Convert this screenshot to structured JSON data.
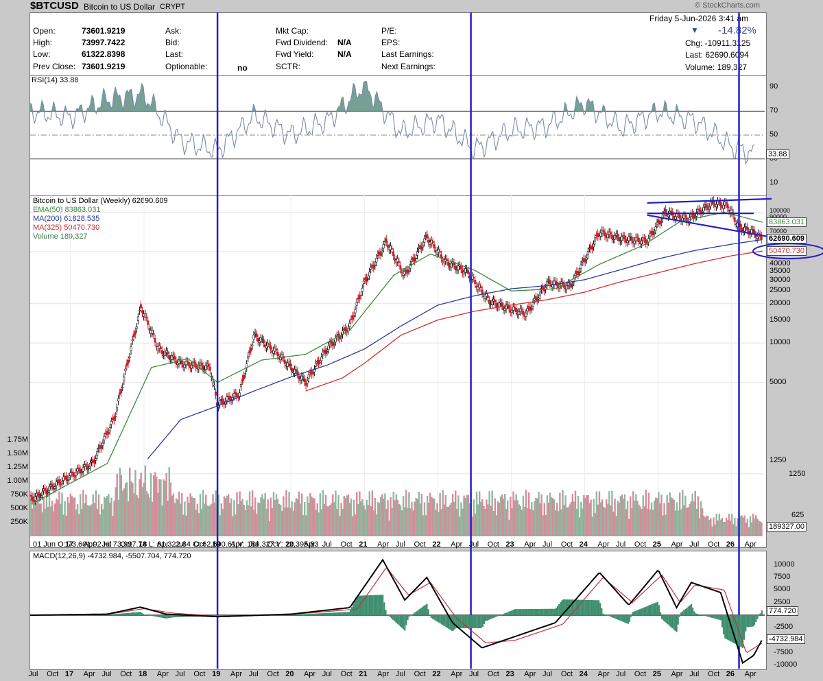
{
  "header": {
    "symbol": "$BTCUSD",
    "name": "Bitcoin to US Dollar",
    "exchange": "CRYPT",
    "brand": "© StockCharts.com",
    "datetime": "Friday   5-Jun-2026  3:41 am",
    "change_pct": "-14.82%",
    "chg": "Chg: -10911.3125",
    "last": "Last: 62690.6094",
    "volume": "Volume: 189,327"
  },
  "quote": {
    "open_label": "Open:",
    "open": "73601.9219",
    "high_label": "High:",
    "high": "73997.7422",
    "low_label": "Low:",
    "low": "61322.8398",
    "prev_label": "Prev Close:",
    "prev": "73601.9219",
    "ask": "Ask:",
    "bid": "Bid:",
    "last": "Last:",
    "optionable": "Optionable:",
    "optionable_val": "no",
    "mktcap": "Mkt Cap:",
    "fwd_div": "Fwd Dividend:",
    "fwd_div_val": "N/A",
    "fwd_yield": "Fwd Yield:",
    "fwd_yield_val": "N/A",
    "sctr": "SCTR:",
    "pe": "P/E:",
    "eps": "EPS:",
    "last_earn": "Last Earnings:",
    "next_earn": "Next Earnings:"
  },
  "colors": {
    "rsi_line": "#7b8aa8",
    "rsi_fill": "#5f8f83",
    "ema50": "#3a8a3a",
    "ma200": "#2a3a9a",
    "ma325": "#d0302f",
    "annot": "#2020d0",
    "macd": "#000000",
    "signal": "#c0303f",
    "hist": "#3f8f6f",
    "vol_up": "#8fb89f",
    "vol_down": "#d98a9a"
  },
  "chart_data": [
    {
      "type": "line",
      "title": "RSI(14) 33.88",
      "ylim": [
        0,
        100
      ],
      "yticks": [
        "90",
        "70",
        "50",
        "30",
        "10"
      ],
      "last_tag": "33.88",
      "x_years": [
        2016.5,
        2017,
        2017.5,
        2018,
        2018.5,
        2019,
        2019.5,
        2020,
        2020.5,
        2021,
        2021.5,
        2022,
        2022.5,
        2023,
        2023.5,
        2024,
        2024.5,
        2025,
        2025.5,
        2026,
        2026.3
      ],
      "values": [
        70,
        65,
        80,
        84,
        45,
        37,
        66,
        50,
        62,
        92,
        52,
        63,
        38,
        54,
        58,
        77,
        56,
        70,
        62,
        40,
        34
      ]
    },
    {
      "type": "line",
      "title": "Bitcoin to US Dollar (Weekly) 62690.609",
      "scale": "log",
      "legend": [
        "EMA(50) 83863.031",
        "MA(200) 61828.535",
        "MA(325) 50470.730",
        "Volume 189,327"
      ],
      "yticks": [
        "100000",
        "90000",
        "80000",
        "70000",
        "60000",
        "50000",
        "40000",
        "35000",
        "30000",
        "25000",
        "20000",
        "15000",
        "10000",
        "5000",
        "1250",
        "625"
      ],
      "vol_ticks": [
        "1.75M",
        "1.50M",
        "1.25M",
        "1.00M",
        "750K",
        "500K",
        "250K"
      ],
      "tags": [
        "83863.031",
        "62690.609",
        "50470.730",
        "189327.00"
      ],
      "xlabels": [
        "Jul",
        "Oct",
        "17",
        "Apr",
        "Jul",
        "Oct",
        "18",
        "Apr",
        "Jul",
        "Oct",
        "19",
        "Apr",
        "Jul",
        "Oct",
        "20",
        "Apr",
        "Jul",
        "Oct",
        "21",
        "Apr",
        "Jul",
        "Oct",
        "22",
        "Apr",
        "Jul",
        "Oct",
        "23",
        "Apr",
        "Jul",
        "Oct",
        "24",
        "Apr",
        "Jul",
        "Oct",
        "25",
        "Apr",
        "Jul",
        "Oct",
        "26",
        "Apr"
      ],
      "ohlc_strip": "01 Jun O: 73,601.92   H: 73,997.74   L: 61,322.84   C: 62,690.61   V: 189,327   Y: 12,395.83",
      "series": [
        {
          "name": "Bitcoin to US Dollar",
          "x": [
            2016.5,
            2016.9,
            2017.3,
            2017.6,
            2017.96,
            2018.2,
            2018.5,
            2018.9,
            2019.0,
            2019.3,
            2019.5,
            2019.8,
            2020.2,
            2020.5,
            2020.8,
            2021.0,
            2021.3,
            2021.55,
            2021.85,
            2022.1,
            2022.4,
            2022.7,
            2022.9,
            2023.2,
            2023.5,
            2023.8,
            2024.2,
            2024.5,
            2024.85,
            2025.1,
            2025.4,
            2025.75,
            2025.95,
            2026.1,
            2026.3,
            2026.42
          ],
          "y": [
            650,
            900,
            1200,
            2700,
            19000,
            9000,
            7000,
            6500,
            3400,
            4100,
            11500,
            8500,
            5000,
            9200,
            13500,
            29000,
            60000,
            33000,
            65000,
            42000,
            35000,
            21000,
            19000,
            16800,
            29000,
            27000,
            70000,
            63000,
            60000,
            100000,
            88000,
            118000,
            112000,
            77000,
            70000,
            62690
          ]
        },
        {
          "name": "EMA(50)",
          "x": [
            2016.5,
            2017.5,
            2018.1,
            2018.6,
            2019.0,
            2019.6,
            2020.2,
            2020.8,
            2021.4,
            2021.9,
            2022.5,
            2023.0,
            2023.6,
            2024.2,
            2024.8,
            2025.3,
            2025.9,
            2026.42
          ],
          "y": [
            600,
            1200,
            6500,
            7600,
            5000,
            7400,
            8200,
            12500,
            33000,
            48000,
            36000,
            25000,
            26000,
            40000,
            56000,
            85000,
            100000,
            83863
          ]
        },
        {
          "name": "MA(200)",
          "x": [
            2018.05,
            2018.5,
            2019.0,
            2019.5,
            2020.0,
            2020.5,
            2021.0,
            2021.5,
            2022.0,
            2022.5,
            2023.0,
            2023.5,
            2024.0,
            2024.5,
            2025.0,
            2025.5,
            2026.0,
            2026.42
          ],
          "y": [
            1300,
            2600,
            3300,
            4300,
            5500,
            6800,
            9000,
            13500,
            19500,
            23000,
            26000,
            27500,
            30500,
            36500,
            44000,
            51000,
            57000,
            61829
          ]
        },
        {
          "name": "MA(325)",
          "x": [
            2020.2,
            2020.7,
            2021.0,
            2021.5,
            2022.0,
            2022.5,
            2023.0,
            2023.5,
            2024.0,
            2024.5,
            2025.0,
            2025.5,
            2026.0,
            2026.42
          ],
          "y": [
            4300,
            5400,
            7000,
            11500,
            15000,
            17500,
            19500,
            21500,
            24500,
            29500,
            34500,
            40500,
            46500,
            50471
          ]
        }
      ]
    },
    {
      "type": "line",
      "title": "MACD(12,26,9) -4732.984, -5507.704, 774.720",
      "yticks": [
        "10000",
        "7500",
        "5000",
        "2500",
        "-2500",
        "-5000",
        "-7500",
        "-10000"
      ],
      "tags": [
        "774.720",
        "-4732.984"
      ],
      "xlabels": [
        "Jul",
        "Oct",
        "17",
        "Apr",
        "Jul",
        "Oct",
        "18",
        "Apr",
        "Jul",
        "Oct",
        "19",
        "Apr",
        "Jul",
        "Oct",
        "20",
        "Apr",
        "Jul",
        "Oct",
        "21",
        "Apr",
        "Jul",
        "Oct",
        "22",
        "Apr",
        "Jul",
        "Oct",
        "23",
        "Apr",
        "Jul",
        "Oct",
        "24",
        "Apr",
        "Jul",
        "Oct",
        "25",
        "Apr",
        "Jul",
        "Oct",
        "26",
        "Apr"
      ],
      "series": [
        {
          "name": "MACD",
          "x": [
            2016.5,
            2017.5,
            2017.95,
            2018.3,
            2019.0,
            2020.0,
            2020.8,
            2021.25,
            2021.55,
            2021.85,
            2022.2,
            2022.6,
            2023.0,
            2023.6,
            2024.2,
            2024.6,
            2025.0,
            2025.25,
            2025.45,
            2025.85,
            2026.15,
            2026.3,
            2026.42
          ],
          "y": [
            0,
            200,
            1600,
            200,
            -300,
            200,
            1500,
            11000,
            3000,
            7500,
            -1500,
            -6500,
            -4500,
            -1500,
            8500,
            2000,
            9000,
            1500,
            6500,
            4500,
            -9500,
            -8000,
            -4733
          ]
        },
        {
          "name": "Signal",
          "x": [
            2016.5,
            2017.5,
            2018.0,
            2018.4,
            2019.0,
            2020.0,
            2020.9,
            2021.3,
            2021.6,
            2021.9,
            2022.25,
            2022.65,
            2023.05,
            2023.7,
            2024.25,
            2024.65,
            2025.05,
            2025.3,
            2025.5,
            2025.9,
            2026.2,
            2026.42
          ],
          "y": [
            0,
            150,
            1300,
            400,
            -200,
            150,
            1200,
            9500,
            4000,
            6500,
            -500,
            -5500,
            -5000,
            -1800,
            7500,
            2500,
            8000,
            2500,
            6000,
            5000,
            -7500,
            -5508
          ]
        }
      ],
      "hist_last": 774.72
    }
  ]
}
